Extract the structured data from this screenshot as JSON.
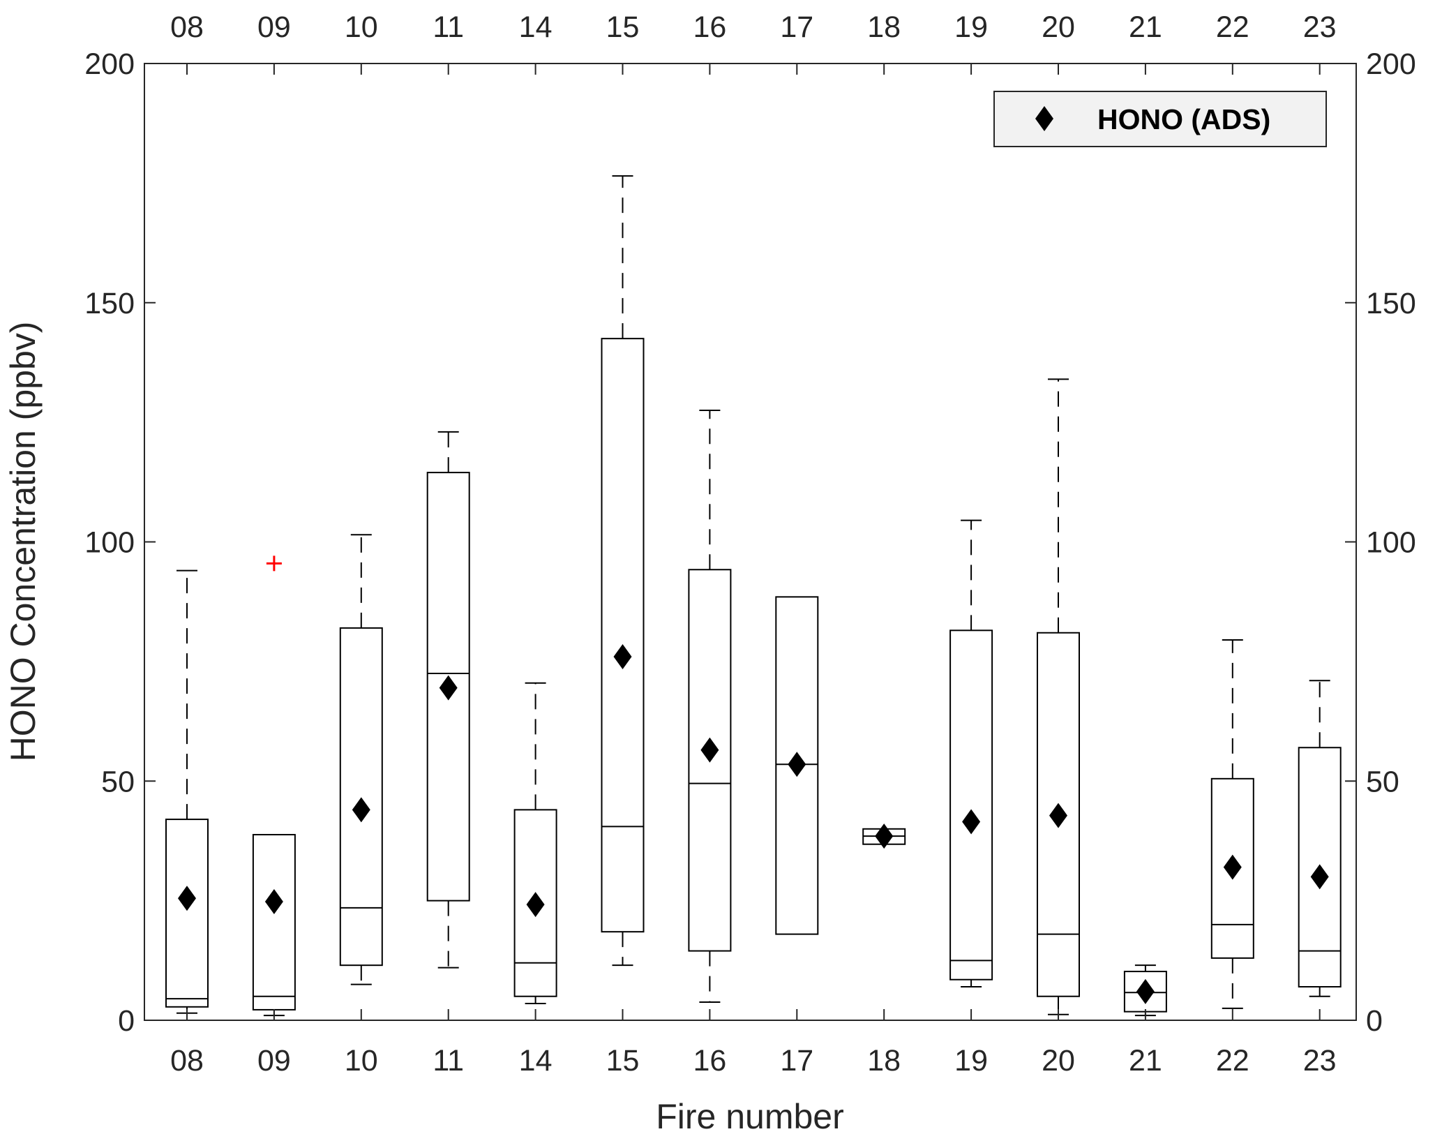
{
  "chart_data": {
    "type": "box",
    "xlabel": "Fire number",
    "ylabel": "HONO Concentration (ppbv)",
    "ylim": [
      0,
      200
    ],
    "yticks": [
      0,
      50,
      100,
      150,
      200
    ],
    "categories": [
      "08",
      "09",
      "10",
      "11",
      "14",
      "15",
      "16",
      "17",
      "18",
      "19",
      "20",
      "21",
      "22",
      "23"
    ],
    "boxes": [
      {
        "category": "08",
        "whisker_low": 1.5,
        "q1": 2.8,
        "median": 4.5,
        "q3": 42,
        "whisker_high": 94,
        "outliers": [],
        "mean": 25.5
      },
      {
        "category": "09",
        "whisker_low": 1,
        "q1": 2.2,
        "median": 5,
        "q3": 38.8,
        "whisker_high": 38.8,
        "outliers": [
          95.5
        ],
        "mean": 24.8
      },
      {
        "category": "10",
        "whisker_low": 7.5,
        "q1": 11.5,
        "median": 23.5,
        "q3": 82,
        "whisker_high": 101.5,
        "outliers": [],
        "mean": 44
      },
      {
        "category": "11",
        "whisker_low": 11,
        "q1": 25,
        "median": 72.5,
        "q3": 114.5,
        "whisker_high": 123,
        "outliers": [],
        "mean": 69.5
      },
      {
        "category": "14",
        "whisker_low": 3.5,
        "q1": 5,
        "median": 12,
        "q3": 44,
        "whisker_high": 70.5,
        "outliers": [],
        "mean": 24.2
      },
      {
        "category": "15",
        "whisker_low": 11.5,
        "q1": 18.5,
        "median": 40.5,
        "q3": 142.5,
        "whisker_high": 176.5,
        "outliers": [],
        "mean": 76
      },
      {
        "category": "16",
        "whisker_low": 3.8,
        "q1": 14.5,
        "median": 49.5,
        "q3": 94.2,
        "whisker_high": 127.5,
        "outliers": [],
        "mean": 56.5
      },
      {
        "category": "17",
        "whisker_low": 18,
        "q1": 18,
        "median": 53.5,
        "q3": 88.5,
        "whisker_high": 88.5,
        "outliers": [],
        "mean": 53.5
      },
      {
        "category": "18",
        "whisker_low": 36.8,
        "q1": 36.8,
        "median": 38.5,
        "q3": 40,
        "whisker_high": 40,
        "outliers": [],
        "mean": 38.5
      },
      {
        "category": "19",
        "whisker_low": 7,
        "q1": 8.5,
        "median": 12.5,
        "q3": 81.5,
        "whisker_high": 104.5,
        "outliers": [],
        "mean": 41.5
      },
      {
        "category": "20",
        "whisker_low": 1.2,
        "q1": 5,
        "median": 18,
        "q3": 81,
        "whisker_high": 134,
        "outliers": [],
        "mean": 42.8
      },
      {
        "category": "21",
        "whisker_low": 1,
        "q1": 1.8,
        "median": 5.8,
        "q3": 10.2,
        "whisker_high": 11.5,
        "outliers": [],
        "mean": 6
      },
      {
        "category": "22",
        "whisker_low": 2.5,
        "q1": 13,
        "median": 20,
        "q3": 50.5,
        "whisker_high": 79.5,
        "outliers": [],
        "mean": 32
      },
      {
        "category": "23",
        "whisker_low": 5,
        "q1": 7,
        "median": 14.5,
        "q3": 57,
        "whisker_high": 71,
        "outliers": [],
        "mean": 30
      }
    ],
    "legend": {
      "entries": [
        "HONO (ADS)"
      ],
      "position": "top-right"
    },
    "grid": false,
    "colors": {
      "box": "#000000",
      "outlier": "#ff0000",
      "mean_marker": "#000000",
      "axis_text": "#262626",
      "legend_bg": "#f2f2f2"
    }
  }
}
